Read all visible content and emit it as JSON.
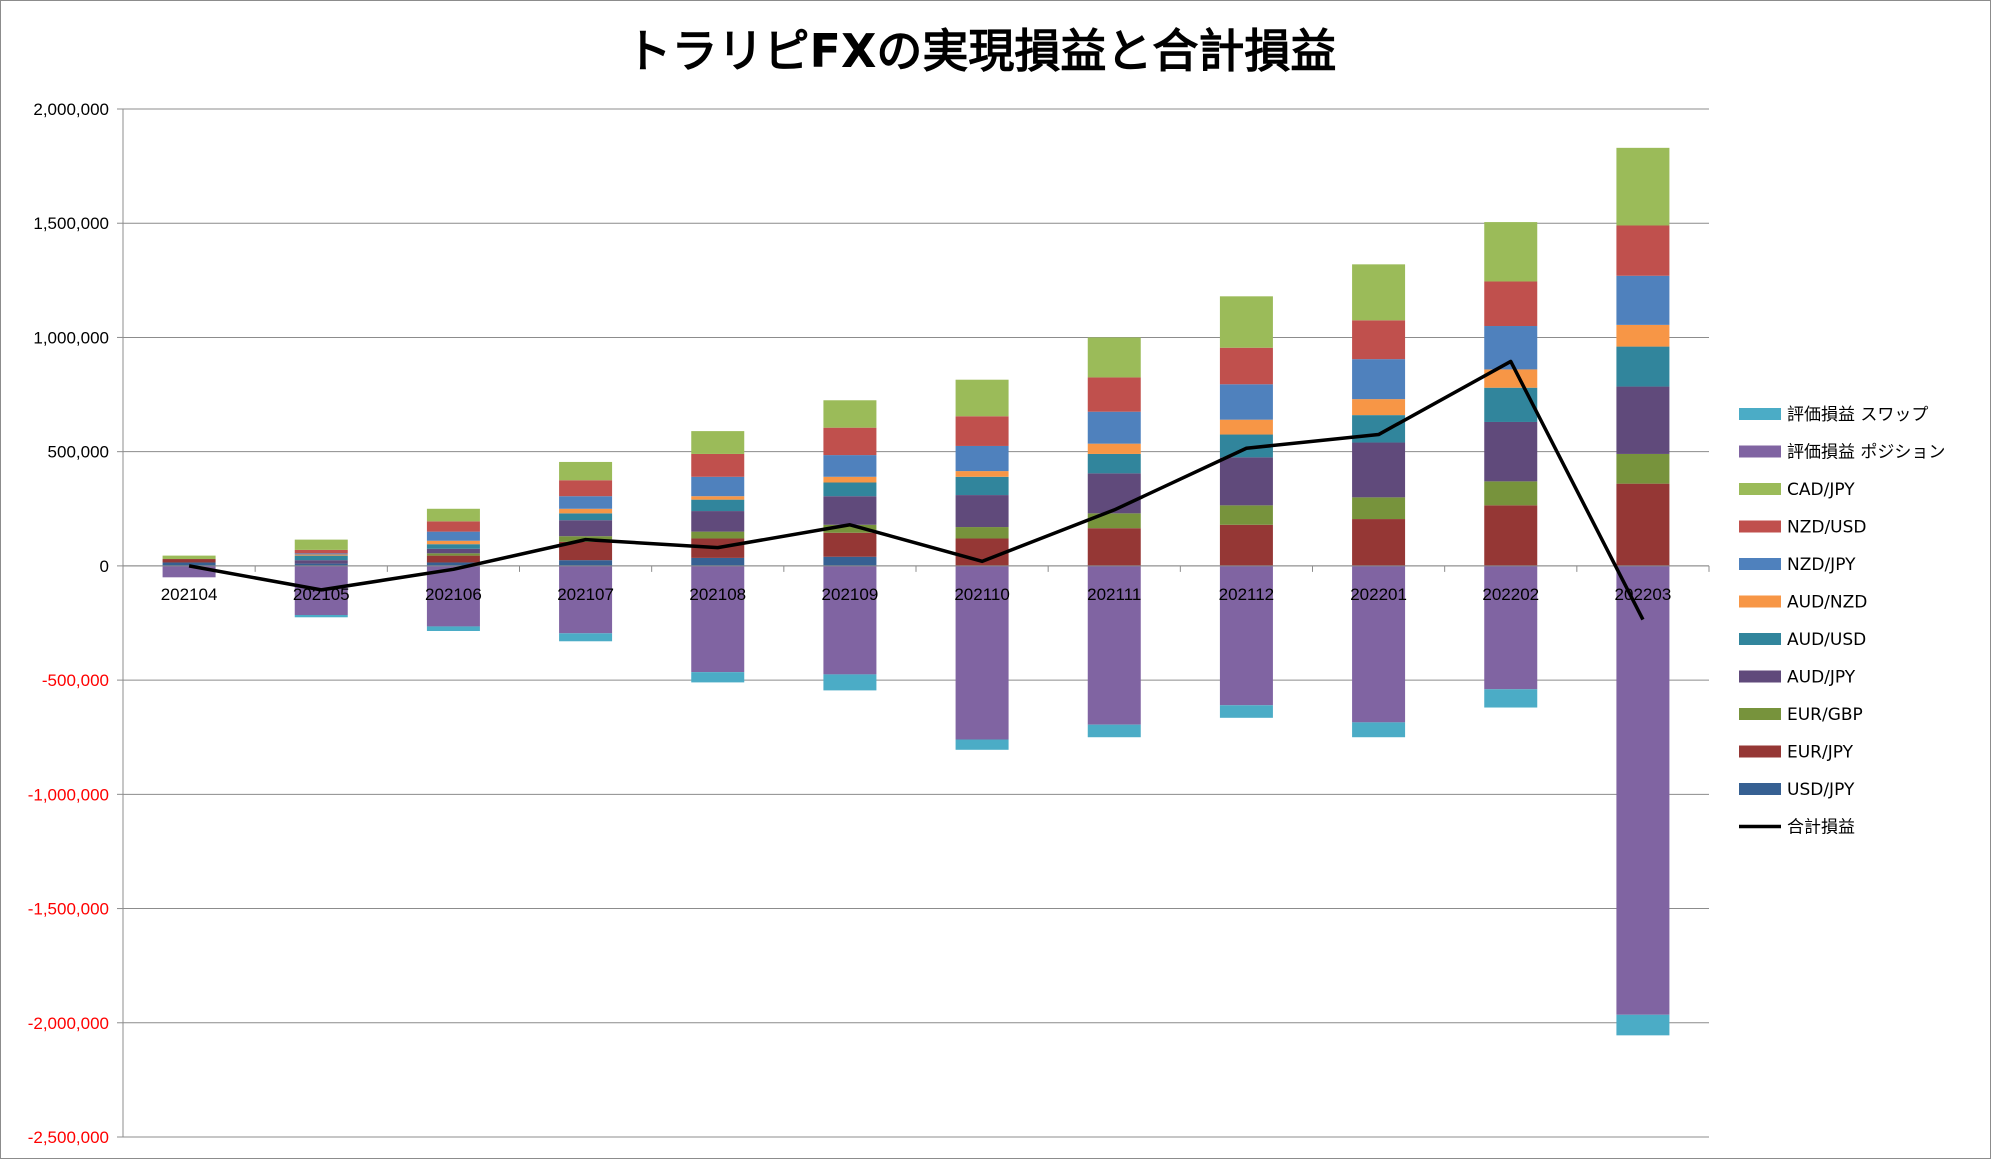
{
  "chart_data": {
    "type": "bar",
    "stacked": true,
    "title": "トラリピFXの実現損益と合計損益",
    "xlabel": "",
    "ylabel": "",
    "ylim": [
      -2500000,
      2000000
    ],
    "ytick_step": 500000,
    "yticks": [
      "2,000,000",
      "1,500,000",
      "1,000,000",
      "500,000",
      "0",
      "-500,000",
      "-1,000,000",
      "-1,500,000",
      "-2,000,000",
      "-2,500,000"
    ],
    "negative_tick_color": "#ff0000",
    "grid": true,
    "legend_position": "right",
    "categories": [
      "202104",
      "202105",
      "202106",
      "202107",
      "202108",
      "202109",
      "202110",
      "202111",
      "202112",
      "202201",
      "202202",
      "202203"
    ],
    "series": [
      {
        "name": "評価損益 スワップ",
        "color": "#4bacc6",
        "values": [
          0,
          -10000,
          -20000,
          -35000,
          -45000,
          -70000,
          -45000,
          -55000,
          -55000,
          -65000,
          -80000,
          -90000
        ]
      },
      {
        "name": "評価損益 ポジション",
        "color": "#8064a2",
        "values": [
          -50000,
          -215000,
          -265000,
          -295000,
          -465000,
          -475000,
          -760000,
          -695000,
          -610000,
          -685000,
          -540000,
          -1965000
        ]
      },
      {
        "name": "CAD/JPY",
        "color": "#9bbb59",
        "values": [
          15000,
          45000,
          55000,
          80000,
          100000,
          120000,
          160000,
          175000,
          225000,
          245000,
          260000,
          340000
        ]
      },
      {
        "name": "NZD/USD",
        "color": "#c0504d",
        "values": [
          0,
          15000,
          45000,
          70000,
          100000,
          120000,
          130000,
          150000,
          160000,
          170000,
          195000,
          220000
        ]
      },
      {
        "name": "NZD/JPY",
        "color": "#4f81bd",
        "values": [
          0,
          5000,
          40000,
          55000,
          85000,
          95000,
          110000,
          140000,
          155000,
          175000,
          190000,
          215000
        ]
      },
      {
        "name": "AUD/NZD",
        "color": "#f79646",
        "values": [
          0,
          5000,
          15000,
          20000,
          15000,
          25000,
          25000,
          45000,
          65000,
          70000,
          80000,
          95000
        ]
      },
      {
        "name": "AUD/USD",
        "color": "#31859c",
        "values": [
          0,
          20000,
          20000,
          30000,
          50000,
          60000,
          80000,
          85000,
          100000,
          120000,
          150000,
          175000
        ]
      },
      {
        "name": "AUD/JPY",
        "color": "#604a7b",
        "values": [
          0,
          15000,
          20000,
          70000,
          90000,
          125000,
          140000,
          175000,
          210000,
          240000,
          260000,
          295000
        ]
      },
      {
        "name": "EUR/GBP",
        "color": "#77933c",
        "values": [
          0,
          0,
          10000,
          25000,
          30000,
          35000,
          50000,
          65000,
          85000,
          95000,
          105000,
          130000
        ]
      },
      {
        "name": "EUR/JPY",
        "color": "#953735",
        "values": [
          15000,
          0,
          30000,
          80000,
          85000,
          105000,
          120000,
          165000,
          180000,
          205000,
          265000,
          360000
        ]
      },
      {
        "name": "USD/JPY",
        "color": "#366092",
        "values": [
          15000,
          10000,
          15000,
          25000,
          35000,
          40000,
          0,
          0,
          0,
          0,
          0,
          0
        ]
      }
    ],
    "line_series": {
      "name": "合計損益",
      "color": "#000000",
      "values": [
        0,
        -105000,
        -15000,
        115000,
        80000,
        180000,
        20000,
        245000,
        515000,
        575000,
        895000,
        -235000
      ]
    }
  }
}
